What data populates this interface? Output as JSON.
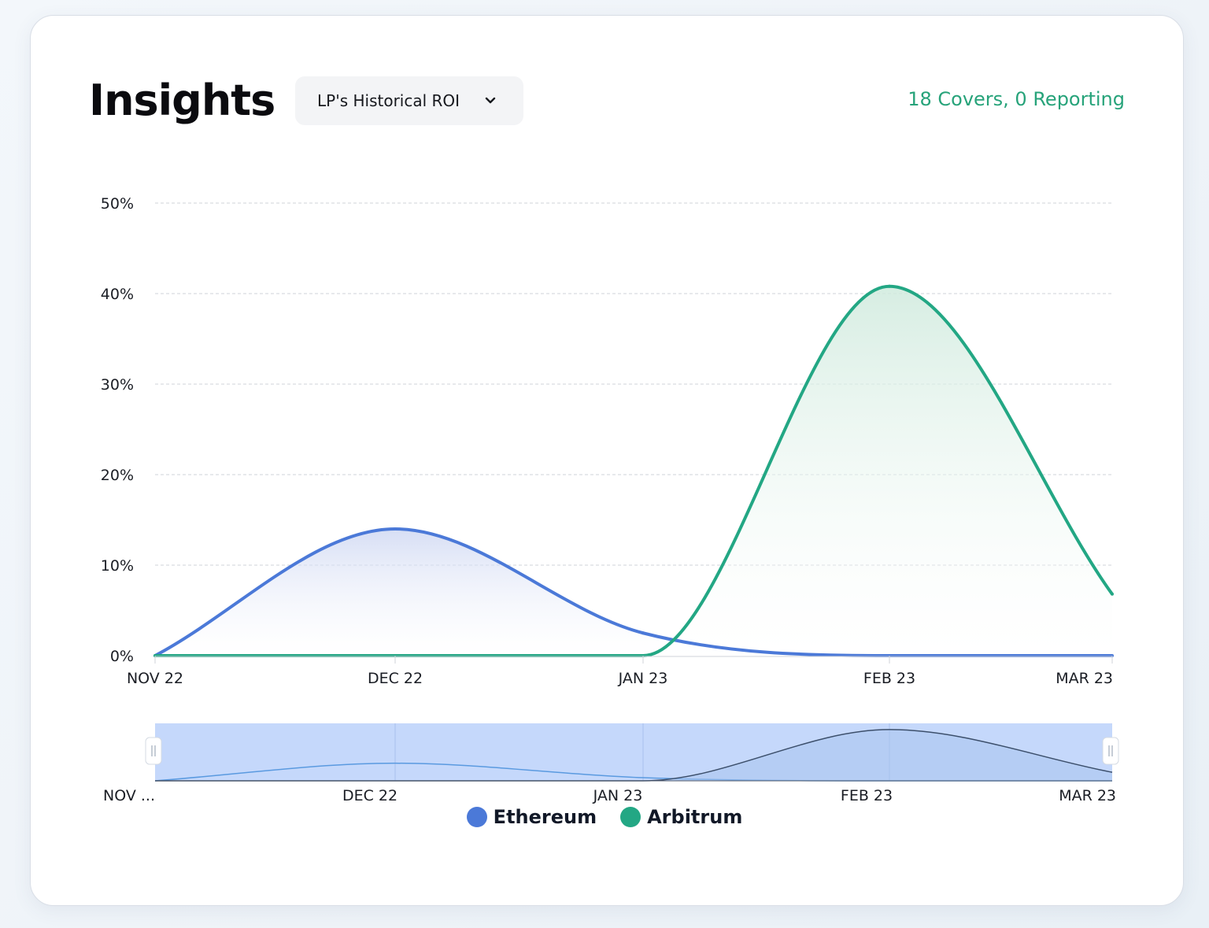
{
  "header": {
    "title": "Insights",
    "dropdown": {
      "selected": "LP's Historical ROI",
      "icon": "chevron-down-icon"
    },
    "status": "18 Covers, 0 Reporting"
  },
  "colors": {
    "ethereum": "#4b79d8",
    "arbitrum": "#23a784",
    "status": "#27a37a",
    "navigator_fill": "#c5d8fb"
  },
  "chart_data": {
    "type": "area",
    "xlabel": "",
    "ylabel": "",
    "ylim": [
      0,
      50
    ],
    "yticks": [
      "0%",
      "10%",
      "20%",
      "30%",
      "40%",
      "50%"
    ],
    "ytick_values": [
      0,
      10,
      20,
      30,
      40,
      50
    ],
    "categories": [
      "NOV 22",
      "DEC 22",
      "JAN 23",
      "FEB 23",
      "MAR 23"
    ],
    "grid": true,
    "legend_position": "bottom",
    "series": [
      {
        "name": "Ethereum",
        "values": [
          0,
          14,
          2.5,
          0,
          0
        ]
      },
      {
        "name": "Arbitrum",
        "values": [
          0,
          0,
          0,
          40.8,
          6.8
        ]
      }
    ],
    "navigator": {
      "labels": [
        "NOV ...",
        "DEC 22",
        "JAN 23",
        "FEB 23",
        "MAR 23"
      ]
    }
  }
}
